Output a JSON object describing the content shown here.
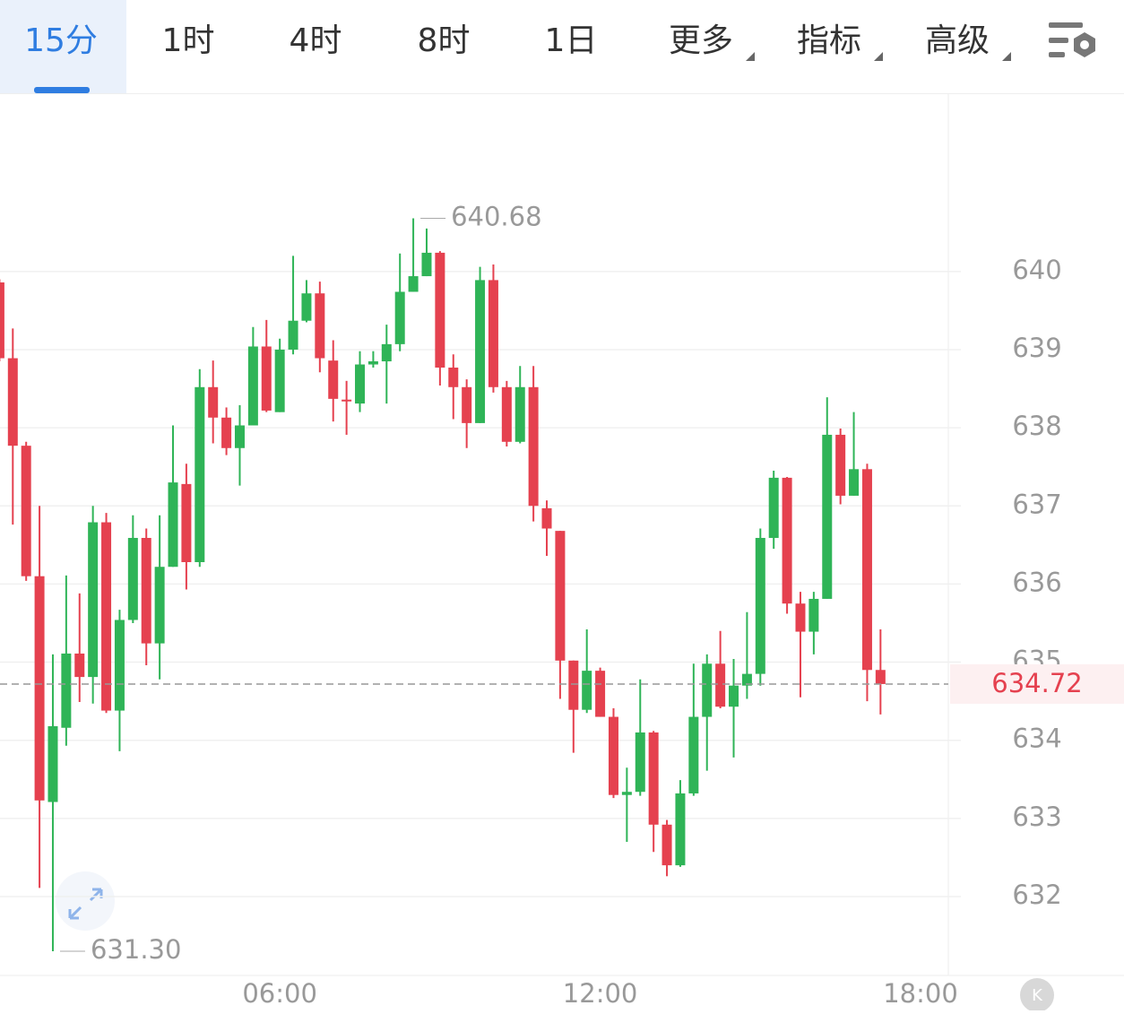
{
  "toolbar": {
    "tabs": [
      "15分",
      "1时",
      "4时",
      "8时",
      "1日",
      "更多",
      "指标",
      "高级"
    ],
    "active": 0
  },
  "chart_data": {
    "type": "candlestick",
    "x": [
      0.75,
      1,
      1.25,
      1.5,
      1.75,
      2,
      2.25,
      2.5,
      2.75,
      3,
      3.25,
      3.5,
      3.75,
      4,
      4.25,
      4.5,
      4.75,
      5,
      5.25,
      5.5,
      5.75,
      6,
      6.25,
      6.5,
      6.75,
      7,
      7.25,
      7.5,
      7.75,
      8,
      8.25,
      8.5,
      8.75,
      9,
      9.25,
      9.5,
      9.75,
      10,
      10.25,
      10.5,
      10.75,
      11,
      11.25,
      11.5,
      11.75,
      12,
      12.25,
      12.5,
      12.75,
      13,
      13.25,
      13.5,
      13.75,
      14,
      14.25,
      14.5,
      14.75,
      15,
      15.25,
      15.5,
      15.75,
      16,
      16.25,
      16.5,
      16.75,
      17,
      17.25
    ],
    "open": [
      639.86,
      638.89,
      637.77,
      636.1,
      633.21,
      634.16,
      635.11,
      634.81,
      636.79,
      634.38,
      635.54,
      636.59,
      635.24,
      636.22,
      637.28,
      636.28,
      638.52,
      638.13,
      637.74,
      638.03,
      639.04,
      638.2,
      639.0,
      639.37,
      639.72,
      638.86,
      638.36,
      638.31,
      638.81,
      638.85,
      639.07,
      639.74,
      639.94,
      640.24,
      638.77,
      638.52,
      638.06,
      639.89,
      638.52,
      637.82,
      638.52,
      636.97,
      636.68,
      635.02,
      634.39,
      634.89,
      634.3,
      633.3,
      633.34,
      634.1,
      632.92,
      632.4,
      633.32,
      634.3,
      634.98,
      634.43,
      634.7,
      634.85,
      636.59,
      637.36,
      635.75,
      635.39,
      635.81,
      637.91,
      637.13,
      637.47,
      634.9
    ],
    "high": [
      639.9,
      639.27,
      637.82,
      637.0,
      635.1,
      636.11,
      635.88,
      637.0,
      636.91,
      635.67,
      636.88,
      636.71,
      636.88,
      638.03,
      637.54,
      638.75,
      638.86,
      638.26,
      638.29,
      639.29,
      639.38,
      639.14,
      640.2,
      639.89,
      639.87,
      639.12,
      638.6,
      638.98,
      638.98,
      639.32,
      640.23,
      640.68,
      640.55,
      640.26,
      638.94,
      638.62,
      640.06,
      640.09,
      638.6,
      638.79,
      638.79,
      637.07,
      636.68,
      635.02,
      635.42,
      634.93,
      634.41,
      633.65,
      634.78,
      634.12,
      632.98,
      633.49,
      634.98,
      635.1,
      635.4,
      635.04,
      635.64,
      636.71,
      637.45,
      637.37,
      635.9,
      635.9,
      638.39,
      637.99,
      638.2,
      637.54,
      635.42
    ],
    "low": [
      638.85,
      636.76,
      636.04,
      632.11,
      631.3,
      633.93,
      634.49,
      634.47,
      634.35,
      633.86,
      635.5,
      634.96,
      634.78,
      636.22,
      635.93,
      636.22,
      637.8,
      637.65,
      637.26,
      638.03,
      638.2,
      638.2,
      638.94,
      639.35,
      638.71,
      638.08,
      637.91,
      638.2,
      638.77,
      638.31,
      638.98,
      639.74,
      639.94,
      638.54,
      638.11,
      637.74,
      638.06,
      638.45,
      637.76,
      637.8,
      636.8,
      636.36,
      634.53,
      633.84,
      634.35,
      634.3,
      633.26,
      632.7,
      633.29,
      632.57,
      632.26,
      632.38,
      633.29,
      633.61,
      634.41,
      633.78,
      634.53,
      634.7,
      636.45,
      635.62,
      634.55,
      635.1,
      635.81,
      637.02,
      637.13,
      634.5,
      634.33
    ],
    "close": [
      638.89,
      637.77,
      636.1,
      633.23,
      634.18,
      635.11,
      634.81,
      636.79,
      634.38,
      635.54,
      636.59,
      635.24,
      636.22,
      637.3,
      636.28,
      638.52,
      638.13,
      637.74,
      638.03,
      639.04,
      638.22,
      639.0,
      639.37,
      639.72,
      638.89,
      638.37,
      638.34,
      638.81,
      638.85,
      639.07,
      639.74,
      639.94,
      640.24,
      638.77,
      638.52,
      638.06,
      639.89,
      638.52,
      637.82,
      638.52,
      637.0,
      636.71,
      635.02,
      634.39,
      634.89,
      634.3,
      633.3,
      633.34,
      634.1,
      632.92,
      632.4,
      633.32,
      634.3,
      634.98,
      634.43,
      634.7,
      634.85,
      636.59,
      637.36,
      635.75,
      635.39,
      635.81,
      637.91,
      637.13,
      637.47,
      634.9,
      634.72
    ],
    "up_color": "#2fb457",
    "down_color": "#e5414f",
    "xlim": [
      0.76,
      18.52
    ],
    "ylim": [
      630.99,
      642.27
    ],
    "xticks": [
      {
        "value": 6,
        "label": "06:00"
      },
      {
        "value": 12,
        "label": "12:00"
      },
      {
        "value": 18,
        "label": "18:00"
      }
    ],
    "yticks": [
      632,
      633,
      634,
      635,
      636,
      637,
      638,
      639,
      640
    ],
    "grid": true,
    "annotations": [
      640.68,
      {
        "value": 631.3,
        "label": "631.30"
      }
    ],
    "last_price": 634.72
  }
}
